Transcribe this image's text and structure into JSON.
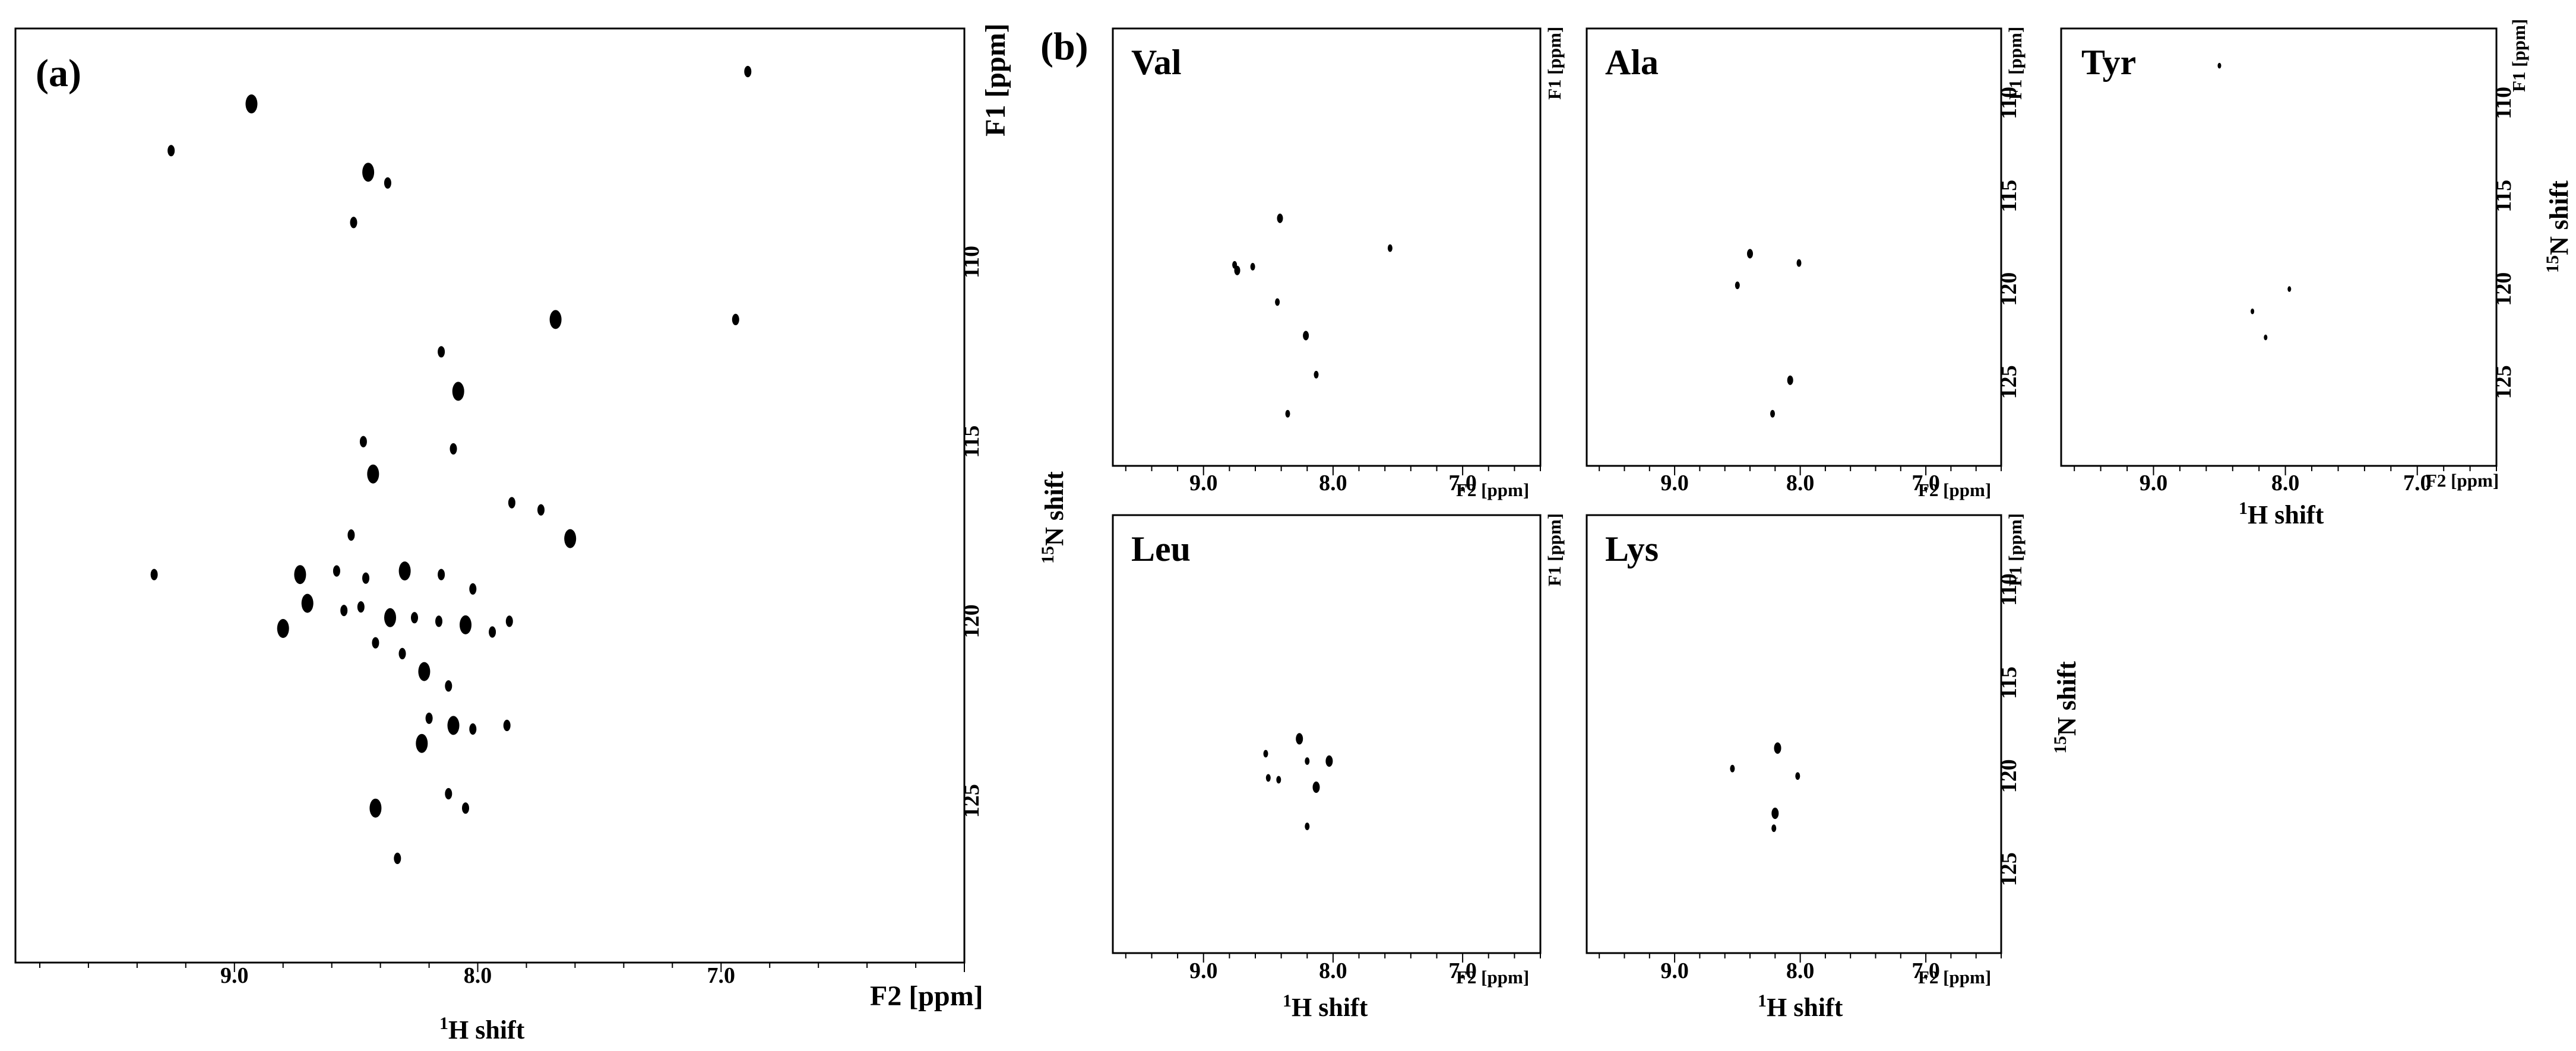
{
  "figure": {
    "panel_a_label": "(a)",
    "panel_b_label": "(b)"
  },
  "chart_data": [
    {
      "id": "a",
      "type": "scatter",
      "title": "",
      "xlabel_main": "H shift",
      "xlabel_sup": "1",
      "ylabel_main": "N shift",
      "ylabel_sup": "15",
      "x_unit_label": "F2 [ppm]",
      "y_unit_label": "F1 [ppm]",
      "xlim": [
        9.9,
        6.0
      ],
      "ylim": [
        103.5,
        129.5
      ],
      "x_ticks": [
        "9.0",
        "8.0",
        "7.0"
      ],
      "x_tick_values": [
        9.0,
        8.0,
        7.0
      ],
      "y_ticks": [
        "110",
        "115",
        "120",
        "125"
      ],
      "y_tick_values": [
        110,
        115,
        120,
        125
      ],
      "points": [
        [
          8.93,
          105.6
        ],
        [
          9.26,
          106.9
        ],
        [
          6.89,
          104.7
        ],
        [
          8.45,
          107.5
        ],
        [
          8.37,
          107.8
        ],
        [
          8.51,
          108.9
        ],
        [
          7.68,
          111.6
        ],
        [
          6.94,
          111.6
        ],
        [
          8.15,
          112.5
        ],
        [
          8.08,
          113.6
        ],
        [
          8.1,
          115.2
        ],
        [
          8.47,
          115.0
        ],
        [
          8.43,
          115.9
        ],
        [
          7.86,
          116.7
        ],
        [
          7.74,
          116.9
        ],
        [
          7.62,
          117.7
        ],
        [
          8.52,
          117.6
        ],
        [
          9.33,
          118.7
        ],
        [
          8.73,
          118.7
        ],
        [
          8.58,
          118.6
        ],
        [
          8.46,
          118.8
        ],
        [
          8.3,
          118.6
        ],
        [
          8.15,
          118.7
        ],
        [
          8.02,
          119.1
        ],
        [
          8.7,
          119.5
        ],
        [
          8.55,
          119.7
        ],
        [
          8.48,
          119.6
        ],
        [
          8.36,
          119.9
        ],
        [
          8.26,
          119.9
        ],
        [
          8.16,
          120.0
        ],
        [
          8.05,
          120.1
        ],
        [
          7.94,
          120.3
        ],
        [
          7.87,
          120.0
        ],
        [
          8.8,
          120.2
        ],
        [
          8.42,
          120.6
        ],
        [
          8.31,
          120.9
        ],
        [
          8.22,
          121.4
        ],
        [
          8.12,
          121.8
        ],
        [
          8.2,
          122.7
        ],
        [
          8.1,
          122.9
        ],
        [
          8.02,
          123.0
        ],
        [
          7.88,
          122.9
        ],
        [
          8.23,
          123.4
        ],
        [
          8.12,
          124.8
        ],
        [
          8.05,
          125.2
        ],
        [
          8.42,
          125.2
        ],
        [
          8.33,
          126.6
        ]
      ]
    },
    {
      "id": "b-val",
      "type": "scatter",
      "title": "Val",
      "x_unit_label": "F2 [ppm]",
      "y_unit_label": "F1 [ppm]",
      "xlim": [
        9.7,
        6.4
      ],
      "ylim": [
        106.0,
        129.5
      ],
      "x_ticks": [
        "9.0",
        "8.0",
        "7.0"
      ],
      "x_tick_values": [
        9.0,
        8.0,
        7.0
      ],
      "y_ticks": [],
      "y_tick_values": [],
      "points": [
        [
          8.41,
          116.2
        ],
        [
          7.56,
          117.8
        ],
        [
          8.76,
          118.7
        ],
        [
          8.74,
          119.0
        ],
        [
          8.62,
          118.8
        ],
        [
          8.43,
          120.7
        ],
        [
          8.21,
          122.5
        ],
        [
          8.13,
          124.6
        ],
        [
          8.35,
          126.7
        ]
      ]
    },
    {
      "id": "b-ala",
      "type": "scatter",
      "title": "Ala",
      "x_unit_label": "F2 [ppm]",
      "y_unit_label": "F1 [ppm]",
      "xlim": [
        9.7,
        6.4
      ],
      "ylim": [
        106.0,
        129.5
      ],
      "x_ticks": [
        "9.0",
        "8.0",
        "7.0"
      ],
      "x_tick_values": [
        9.0,
        8.0,
        7.0
      ],
      "y_ticks": [
        "110",
        "115",
        "120",
        "125"
      ],
      "y_tick_values": [
        110,
        115,
        120,
        125
      ],
      "xlabel_main": "",
      "ylabel_main": "",
      "points": [
        [
          8.4,
          118.1
        ],
        [
          8.01,
          118.6
        ],
        [
          8.5,
          119.8
        ],
        [
          8.08,
          124.9
        ],
        [
          8.22,
          126.7
        ]
      ]
    },
    {
      "id": "b-tyr",
      "type": "scatter",
      "title": "Tyr",
      "x_unit_label": "F2 [ppm]",
      "y_unit_label": "F1 [ppm]",
      "xlim": [
        9.7,
        6.4
      ],
      "ylim": [
        106.0,
        129.5
      ],
      "x_ticks": [
        "9.0",
        "8.0",
        "7.0"
      ],
      "x_tick_values": [
        9.0,
        8.0,
        7.0
      ],
      "y_ticks": [
        "110",
        "115",
        "120",
        "125"
      ],
      "y_tick_values": [
        110,
        115,
        120,
        125
      ],
      "xlabel_main": "H shift",
      "xlabel_sup": "1",
      "ylabel_main": "N shift",
      "ylabel_sup": "15",
      "points": [
        [
          8.5,
          108.0
        ],
        [
          7.97,
          120.0
        ],
        [
          8.25,
          121.2
        ],
        [
          8.15,
          122.6
        ]
      ]
    },
    {
      "id": "b-leu",
      "type": "scatter",
      "title": "Leu",
      "x_unit_label": "F2 [ppm]",
      "y_unit_label": "F1 [ppm]",
      "xlim": [
        9.7,
        6.4
      ],
      "ylim": [
        106.0,
        129.5
      ],
      "x_ticks": [
        "9.0",
        "8.0",
        "7.0"
      ],
      "x_tick_values": [
        9.0,
        8.0,
        7.0
      ],
      "y_ticks": [],
      "y_tick_values": [],
      "xlabel_main": "H shift",
      "xlabel_sup": "1",
      "points": [
        [
          8.26,
          118.0
        ],
        [
          8.52,
          118.8
        ],
        [
          8.2,
          119.2
        ],
        [
          8.03,
          119.2
        ],
        [
          8.5,
          120.1
        ],
        [
          8.42,
          120.2
        ],
        [
          8.13,
          120.6
        ],
        [
          8.2,
          122.7
        ]
      ]
    },
    {
      "id": "b-lys",
      "type": "scatter",
      "title": "Lys",
      "x_unit_label": "F2 [ppm]",
      "y_unit_label": "F1 [ppm]",
      "xlim": [
        9.7,
        6.4
      ],
      "ylim": [
        106.0,
        129.5
      ],
      "x_ticks": [
        "9.0",
        "8.0",
        "7.0"
      ],
      "x_tick_values": [
        9.0,
        8.0,
        7.0
      ],
      "y_ticks": [
        "110",
        "115",
        "120",
        "125"
      ],
      "y_tick_values": [
        110,
        115,
        120,
        125
      ],
      "xlabel_main": "H shift",
      "xlabel_sup": "1",
      "ylabel_main": "N shift",
      "ylabel_sup": "15",
      "points": [
        [
          8.18,
          118.5
        ],
        [
          8.54,
          119.6
        ],
        [
          8.02,
          120.0
        ],
        [
          8.2,
          122.0
        ],
        [
          8.21,
          122.8
        ]
      ]
    }
  ]
}
